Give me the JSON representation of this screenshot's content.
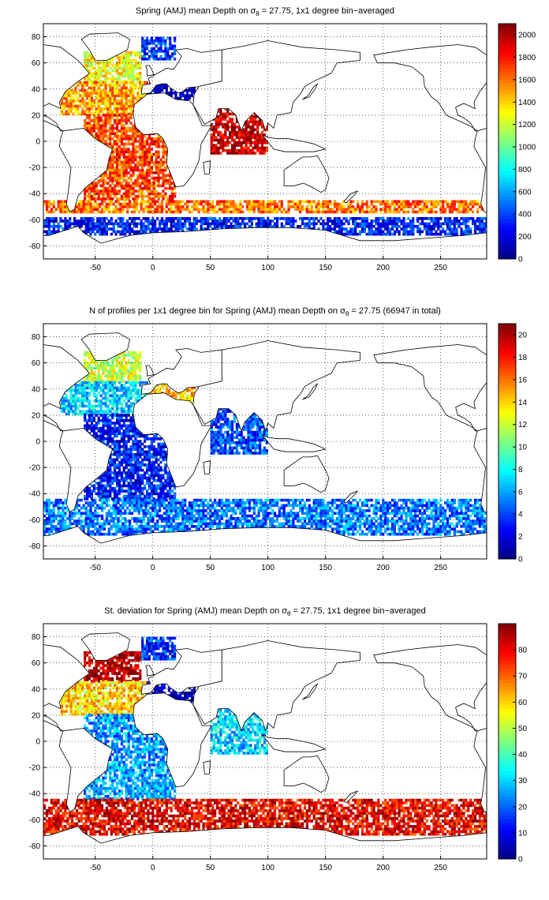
{
  "chart_data": [
    {
      "type": "heatmap",
      "title": "Spring (AMJ) mean Depth on σθ = 27.75, 1x1 degree bin−averaged",
      "title_parts": [
        "Spring (AMJ) mean Depth on ",
        "σ",
        "θ",
        " = 27.75, 1x1 degree bin−averaged"
      ],
      "xlim": [
        -95,
        290
      ],
      "ylim": [
        -90,
        90
      ],
      "xticks": [
        -50,
        0,
        50,
        100,
        150,
        200,
        250
      ],
      "yticks": [
        -80,
        -60,
        -40,
        -20,
        0,
        20,
        40,
        60,
        80
      ],
      "grid": true,
      "colorbar": {
        "min": 0,
        "max": 2100,
        "ticks": [
          0,
          200,
          400,
          600,
          800,
          1000,
          1200,
          1400,
          1600,
          1800,
          2000
        ],
        "colormap": "jet"
      },
      "data": [
        {
          "region": "North Atlantic subpolar (Labrador / Irminger)",
          "lon": [
            -60,
            -10
          ],
          "lat": [
            45,
            68
          ],
          "value": 1300
        },
        {
          "region": "North Atlantic subtropical",
          "lon": [
            -80,
            -5
          ],
          "lat": [
            20,
            45
          ],
          "value": 1500
        },
        {
          "region": "Nordic Seas",
          "lon": [
            -10,
            20
          ],
          "lat": [
            62,
            80
          ],
          "value": 350
        },
        {
          "region": "Mediterranean",
          "lon": [
            -5,
            36
          ],
          "lat": [
            30,
            45
          ],
          "value": 100
        },
        {
          "region": "Tropical / South Atlantic",
          "lon": [
            -60,
            20
          ],
          "lat": [
            -45,
            20
          ],
          "value": 1700
        },
        {
          "region": "Western Indian Ocean",
          "lon": [
            50,
            100
          ],
          "lat": [
            -10,
            25
          ],
          "value": 1950
        },
        {
          "region": "Antarctic Circumpolar Current (north edge)",
          "lon": [
            -95,
            290
          ],
          "lat": [
            -55,
            -45
          ],
          "value": 1600
        },
        {
          "region": "Antarctic Circumpolar Current (south edge)",
          "lon": [
            -95,
            290
          ],
          "lat": [
            -72,
            -58
          ],
          "value": 300
        }
      ]
    },
    {
      "type": "heatmap",
      "title": "N of profiles per 1x1 degree bin for Spring (AMJ) mean Depth on σθ = 27.75 (66947 in total)",
      "title_parts": [
        "N of profiles per 1x1 degree bin for Spring (AMJ) mean Depth on ",
        "σ",
        "θ",
        " = 27.75 (66947 in total)"
      ],
      "total_profiles": 66947,
      "xlim": [
        -95,
        290
      ],
      "ylim": [
        -90,
        90
      ],
      "xticks": [
        -50,
        0,
        50,
        100,
        150,
        200,
        250
      ],
      "yticks": [
        -80,
        -60,
        -40,
        -20,
        0,
        20,
        40,
        60,
        80
      ],
      "grid": true,
      "colorbar": {
        "min": 0,
        "max": 21,
        "ticks": [
          0,
          2,
          4,
          6,
          8,
          10,
          12,
          14,
          16,
          18,
          20
        ],
        "colormap": "jet"
      },
      "data": [
        {
          "region": "North Atlantic subpolar",
          "lon": [
            -60,
            -10
          ],
          "lat": [
            45,
            68
          ],
          "value": 12
        },
        {
          "region": "North Atlantic subtropical",
          "lon": [
            -80,
            -5
          ],
          "lat": [
            20,
            45
          ],
          "value": 7
        },
        {
          "region": "Mediterranean",
          "lon": [
            -5,
            36
          ],
          "lat": [
            30,
            45
          ],
          "value": 14
        },
        {
          "region": "Tropical / South Atlantic",
          "lon": [
            -60,
            20
          ],
          "lat": [
            -45,
            20
          ],
          "value": 3
        },
        {
          "region": "Western Indian Ocean",
          "lon": [
            50,
            100
          ],
          "lat": [
            -10,
            25
          ],
          "value": 4
        },
        {
          "region": "Southern Ocean band",
          "lon": [
            -95,
            290
          ],
          "lat": [
            -72,
            -45
          ],
          "value": 5
        }
      ]
    },
    {
      "type": "heatmap",
      "title": "St. deviation for Spring (AMJ) mean Depth on σθ = 27.75, 1x1 degree bin−averaged",
      "title_parts": [
        "St. deviation for Spring (AMJ) mean Depth on ",
        "σ",
        "θ",
        " = 27.75, 1x1 degree bin−averaged"
      ],
      "xlim": [
        -95,
        290
      ],
      "ylim": [
        -90,
        90
      ],
      "xticks": [
        -50,
        0,
        50,
        100,
        150,
        200,
        250
      ],
      "yticks": [
        -80,
        -60,
        -40,
        -20,
        0,
        20,
        40,
        60,
        80
      ],
      "grid": true,
      "colorbar": {
        "min": 0,
        "max": 90,
        "ticks": [
          0,
          10,
          20,
          30,
          40,
          50,
          60,
          70,
          80
        ],
        "colormap": "jet"
      },
      "data": [
        {
          "region": "North Atlantic subpolar",
          "lon": [
            -60,
            -10
          ],
          "lat": [
            45,
            68
          ],
          "value": 85
        },
        {
          "region": "North Atlantic subtropical",
          "lon": [
            -80,
            -5
          ],
          "lat": [
            20,
            45
          ],
          "value": 60
        },
        {
          "region": "Nordic Seas",
          "lon": [
            -10,
            20
          ],
          "lat": [
            62,
            80
          ],
          "value": 15
        },
        {
          "region": "Mediterranean",
          "lon": [
            -5,
            36
          ],
          "lat": [
            30,
            45
          ],
          "value": 5
        },
        {
          "region": "Tropical / South Atlantic",
          "lon": [
            -60,
            20
          ],
          "lat": [
            -45,
            20
          ],
          "value": 25
        },
        {
          "region": "Western Indian Ocean",
          "lon": [
            50,
            100
          ],
          "lat": [
            -10,
            25
          ],
          "value": 30
        },
        {
          "region": "Southern Ocean band",
          "lon": [
            -95,
            290
          ],
          "lat": [
            -72,
            -45
          ],
          "value": 80
        }
      ]
    }
  ]
}
